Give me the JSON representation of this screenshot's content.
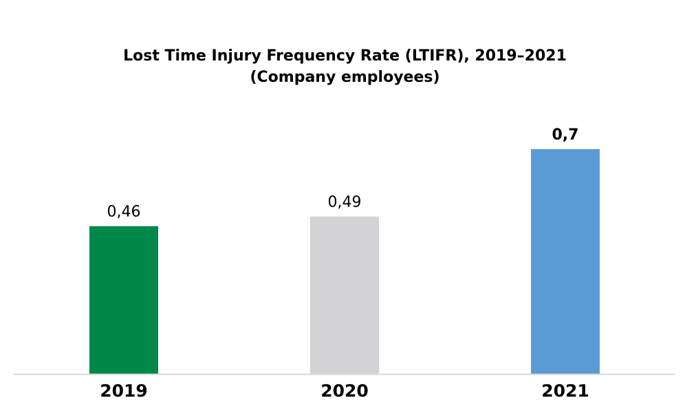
{
  "chart_data": {
    "type": "bar",
    "title": "Lost Time Injury Frequency Rate (LTIFR), 2019–2021",
    "subtitle": "(Company employees)",
    "categories": [
      "2019",
      "2020",
      "2021"
    ],
    "values": [
      0.46,
      0.49,
      0.7
    ],
    "value_labels": [
      "0,46",
      "0,49",
      "0,7"
    ],
    "bar_colors": [
      "#00884A",
      "#D3D3D5",
      "#5B9BD5"
    ],
    "emphasized_value_label_index": 2,
    "xlabel": "",
    "ylabel": "",
    "ylim": [
      0,
      0.85
    ],
    "grid": false,
    "legend": "none",
    "axis_line_color": "#D9D9D9"
  }
}
